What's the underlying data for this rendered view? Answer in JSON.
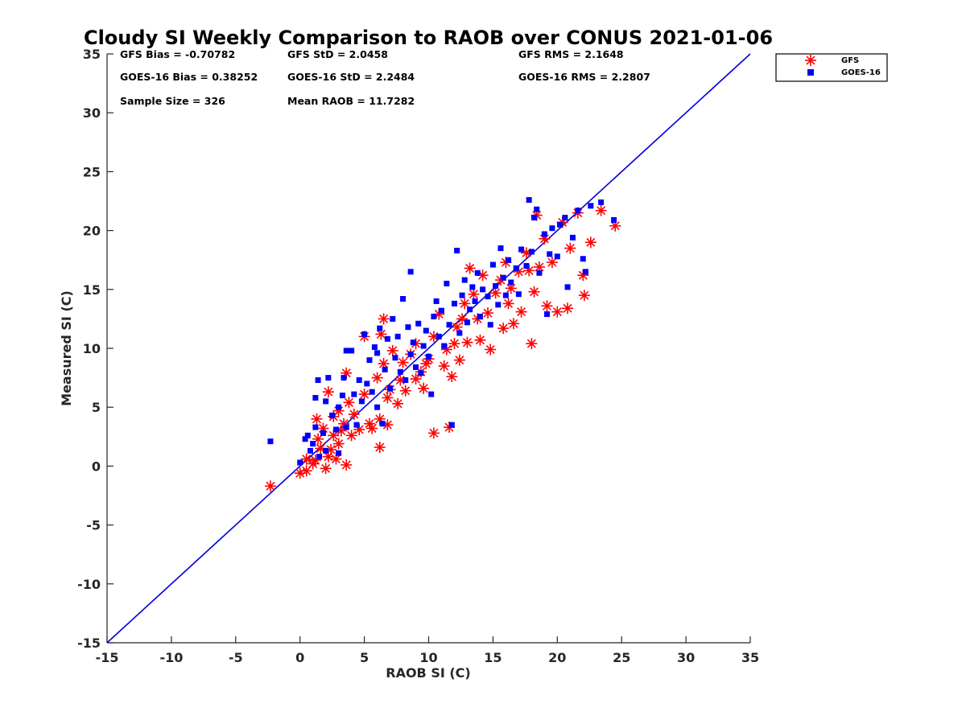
{
  "chart_data": {
    "type": "scatter",
    "title": "Cloudy SI Weekly Comparison to RAOB over CONUS 2021-01-06",
    "xlabel": "RAOB SI (C)",
    "ylabel": "Measured SI (C)",
    "xlim": [
      -15,
      35
    ],
    "ylim": [
      -15,
      35
    ],
    "xticks": [
      -15,
      -10,
      -5,
      0,
      5,
      10,
      15,
      20,
      25,
      30,
      35
    ],
    "yticks": [
      -15,
      -10,
      -5,
      0,
      5,
      10,
      15,
      20,
      25,
      30,
      35
    ],
    "grid": false,
    "legend_position": "outside-top-right",
    "reference_line": {
      "from": [
        -15,
        -15
      ],
      "to": [
        35,
        35
      ],
      "color": "#0000dd"
    },
    "stats": [
      {
        "text": "GFS Bias = -0.70782"
      },
      {
        "text": "GFS StD = 2.0458"
      },
      {
        "text": "GFS RMS = 2.1648"
      },
      {
        "text": "GOES-16 Bias = 0.38252"
      },
      {
        "text": "GOES-16 StD = 2.2484"
      },
      {
        "text": "GOES-16 RMS = 2.2807"
      },
      {
        "text": "Sample Size = 326"
      },
      {
        "text": "Mean RAOB = 11.7282"
      }
    ],
    "series": [
      {
        "name": "GFS",
        "marker": "asterisk",
        "color": "#ff0000",
        "points": [
          [
            -2.3,
            -1.7
          ],
          [
            0.0,
            -0.6
          ],
          [
            0.5,
            -0.4
          ],
          [
            0.5,
            0.6
          ],
          [
            1.0,
            0.2
          ],
          [
            1.2,
            0.5
          ],
          [
            1.4,
            2.3
          ],
          [
            1.6,
            1.5
          ],
          [
            2.0,
            -0.2
          ],
          [
            2.2,
            0.8
          ],
          [
            2.4,
            1.4
          ],
          [
            2.6,
            2.6
          ],
          [
            2.8,
            0.6
          ],
          [
            3.0,
            1.9
          ],
          [
            3.2,
            3.0
          ],
          [
            3.6,
            0.1
          ],
          [
            1.3,
            4.0
          ],
          [
            1.8,
            3.2
          ],
          [
            2.2,
            6.3
          ],
          [
            2.6,
            4.2
          ],
          [
            3.0,
            4.7
          ],
          [
            3.4,
            3.6
          ],
          [
            3.6,
            7.9
          ],
          [
            3.8,
            5.4
          ],
          [
            4.0,
            2.6
          ],
          [
            4.2,
            4.4
          ],
          [
            4.6,
            3.1
          ],
          [
            5.0,
            6.1
          ],
          [
            5.0,
            11.0
          ],
          [
            5.4,
            3.6
          ],
          [
            5.6,
            3.2
          ],
          [
            6.0,
            7.5
          ],
          [
            6.2,
            4.0
          ],
          [
            6.2,
            1.6
          ],
          [
            6.3,
            11.2
          ],
          [
            6.5,
            12.5
          ],
          [
            6.5,
            8.7
          ],
          [
            6.8,
            3.5
          ],
          [
            6.8,
            5.8
          ],
          [
            7.0,
            6.5
          ],
          [
            7.2,
            9.8
          ],
          [
            7.6,
            5.3
          ],
          [
            7.8,
            7.3
          ],
          [
            8.0,
            8.8
          ],
          [
            8.2,
            6.4
          ],
          [
            8.6,
            9.5
          ],
          [
            9.0,
            7.4
          ],
          [
            9.0,
            10.4
          ],
          [
            9.4,
            8.0
          ],
          [
            9.6,
            6.6
          ],
          [
            9.8,
            8.7
          ],
          [
            10.0,
            9.1
          ],
          [
            10.4,
            2.8
          ],
          [
            10.4,
            11.0
          ],
          [
            10.8,
            12.9
          ],
          [
            11.2,
            8.5
          ],
          [
            11.4,
            9.9
          ],
          [
            11.6,
            3.3
          ],
          [
            11.8,
            7.6
          ],
          [
            12.0,
            10.4
          ],
          [
            12.2,
            11.8
          ],
          [
            12.4,
            9.0
          ],
          [
            12.6,
            12.5
          ],
          [
            12.8,
            13.8
          ],
          [
            13.0,
            10.5
          ],
          [
            13.2,
            16.8
          ],
          [
            13.5,
            14.6
          ],
          [
            13.8,
            12.5
          ],
          [
            14.0,
            10.7
          ],
          [
            14.2,
            16.2
          ],
          [
            14.6,
            13.0
          ],
          [
            14.8,
            9.9
          ],
          [
            15.2,
            14.7
          ],
          [
            15.6,
            15.8
          ],
          [
            15.8,
            11.7
          ],
          [
            16.0,
            17.3
          ],
          [
            16.2,
            13.8
          ],
          [
            16.4,
            15.1
          ],
          [
            16.6,
            12.1
          ],
          [
            17.0,
            16.5
          ],
          [
            17.2,
            13.1
          ],
          [
            17.6,
            18.1
          ],
          [
            17.8,
            16.6
          ],
          [
            18.0,
            10.4
          ],
          [
            18.2,
            14.8
          ],
          [
            18.4,
            21.3
          ],
          [
            18.6,
            16.9
          ],
          [
            19.0,
            19.3
          ],
          [
            19.2,
            13.6
          ],
          [
            19.6,
            17.3
          ],
          [
            20.0,
            13.1
          ],
          [
            20.4,
            20.7
          ],
          [
            20.8,
            13.4
          ],
          [
            21.0,
            18.5
          ],
          [
            21.6,
            21.5
          ],
          [
            22.0,
            16.2
          ],
          [
            22.1,
            14.5
          ],
          [
            22.6,
            19.0
          ],
          [
            23.4,
            21.7
          ],
          [
            24.5,
            20.4
          ]
        ]
      },
      {
        "name": "GOES-16",
        "marker": "square",
        "color": "#0000ff",
        "points": [
          [
            -2.3,
            2.1
          ],
          [
            0.0,
            0.3
          ],
          [
            0.4,
            2.3
          ],
          [
            0.6,
            2.6
          ],
          [
            0.8,
            1.3
          ],
          [
            1.0,
            1.9
          ],
          [
            1.2,
            5.8
          ],
          [
            1.2,
            3.3
          ],
          [
            1.4,
            7.3
          ],
          [
            1.5,
            0.8
          ],
          [
            1.8,
            2.8
          ],
          [
            2.0,
            5.5
          ],
          [
            2.0,
            1.3
          ],
          [
            2.2,
            7.5
          ],
          [
            2.5,
            4.3
          ],
          [
            2.8,
            3.1
          ],
          [
            3.0,
            5.0
          ],
          [
            3.0,
            1.1
          ],
          [
            3.3,
            6.0
          ],
          [
            3.4,
            7.5
          ],
          [
            3.6,
            9.8
          ],
          [
            3.6,
            3.3
          ],
          [
            4.0,
            9.8
          ],
          [
            4.2,
            6.1
          ],
          [
            4.4,
            3.5
          ],
          [
            4.6,
            7.3
          ],
          [
            4.8,
            5.5
          ],
          [
            5.0,
            11.2
          ],
          [
            5.2,
            7.0
          ],
          [
            5.4,
            9.0
          ],
          [
            5.6,
            6.3
          ],
          [
            5.8,
            10.1
          ],
          [
            6.0,
            5.0
          ],
          [
            6.0,
            9.6
          ],
          [
            6.2,
            11.7
          ],
          [
            6.4,
            3.6
          ],
          [
            6.6,
            8.2
          ],
          [
            6.8,
            10.8
          ],
          [
            7.0,
            6.6
          ],
          [
            7.2,
            12.5
          ],
          [
            7.4,
            9.2
          ],
          [
            7.6,
            11.0
          ],
          [
            7.8,
            8.0
          ],
          [
            8.0,
            14.2
          ],
          [
            8.2,
            7.3
          ],
          [
            8.4,
            11.8
          ],
          [
            8.6,
            9.5
          ],
          [
            8.6,
            16.5
          ],
          [
            8.8,
            10.5
          ],
          [
            9.0,
            8.4
          ],
          [
            9.2,
            12.1
          ],
          [
            9.4,
            7.9
          ],
          [
            9.6,
            10.2
          ],
          [
            9.8,
            11.5
          ],
          [
            10.0,
            9.3
          ],
          [
            10.2,
            6.1
          ],
          [
            10.4,
            12.7
          ],
          [
            10.6,
            14.0
          ],
          [
            10.8,
            11.0
          ],
          [
            11.0,
            13.2
          ],
          [
            11.2,
            10.2
          ],
          [
            11.4,
            15.5
          ],
          [
            11.6,
            12.0
          ],
          [
            11.8,
            3.5
          ],
          [
            12.0,
            13.8
          ],
          [
            12.2,
            18.3
          ],
          [
            12.4,
            11.3
          ],
          [
            12.6,
            14.5
          ],
          [
            12.8,
            15.8
          ],
          [
            13.0,
            12.2
          ],
          [
            13.2,
            13.3
          ],
          [
            13.4,
            15.2
          ],
          [
            13.6,
            14.0
          ],
          [
            13.8,
            16.4
          ],
          [
            14.0,
            12.7
          ],
          [
            14.2,
            15.0
          ],
          [
            14.6,
            14.4
          ],
          [
            14.8,
            12.0
          ],
          [
            15.0,
            17.1
          ],
          [
            15.2,
            15.3
          ],
          [
            15.4,
            13.7
          ],
          [
            15.6,
            18.5
          ],
          [
            15.8,
            16.0
          ],
          [
            16.0,
            14.5
          ],
          [
            16.2,
            17.5
          ],
          [
            16.4,
            15.6
          ],
          [
            16.8,
            16.8
          ],
          [
            17.0,
            14.6
          ],
          [
            17.2,
            18.4
          ],
          [
            17.6,
            17.0
          ],
          [
            17.8,
            22.6
          ],
          [
            18.0,
            18.2
          ],
          [
            18.2,
            21.1
          ],
          [
            18.4,
            21.8
          ],
          [
            18.6,
            16.4
          ],
          [
            19.0,
            19.7
          ],
          [
            19.2,
            12.9
          ],
          [
            19.4,
            18.0
          ],
          [
            19.6,
            20.2
          ],
          [
            20.0,
            17.8
          ],
          [
            20.2,
            20.5
          ],
          [
            20.6,
            21.1
          ],
          [
            20.8,
            15.2
          ],
          [
            21.2,
            19.4
          ],
          [
            21.6,
            21.7
          ],
          [
            22.0,
            17.6
          ],
          [
            22.2,
            16.5
          ],
          [
            22.6,
            22.1
          ],
          [
            23.4,
            22.4
          ],
          [
            24.4,
            20.9
          ]
        ]
      }
    ]
  }
}
